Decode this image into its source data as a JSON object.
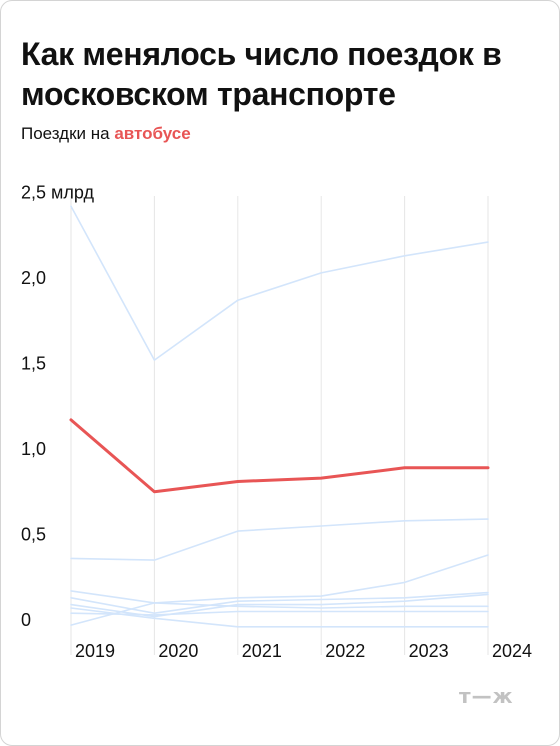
{
  "title": "Как менялось число поездок в московском транспорте",
  "subtitle": {
    "prefix": "Поездки на ",
    "highlight": "автобусе",
    "highlight_color": "#e85555"
  },
  "logo": "т—ж",
  "colors": {
    "highlight_line": "#e85555",
    "other_lines": "#d3e5fb",
    "grid": "#e6e6e6"
  },
  "chart_data": {
    "type": "line",
    "x": [
      "2019",
      "2020",
      "2021",
      "2022",
      "2023",
      "2024"
    ],
    "y_ticks": [
      "2,5 млрд",
      "2,0",
      "1,5",
      "1,0",
      "0,5",
      "0"
    ],
    "y_tick_values": [
      2.5,
      2.0,
      1.5,
      1.0,
      0.5,
      0
    ],
    "ylim": [
      0,
      2.5
    ],
    "unit": "млрд",
    "grid": "vertical",
    "series": [
      {
        "highlight": false,
        "values": [
          2.42,
          1.52,
          1.87,
          2.03,
          2.13,
          2.21
        ]
      },
      {
        "highlight": true,
        "values": [
          1.17,
          0.75,
          0.81,
          0.83,
          0.89,
          0.89
        ]
      },
      {
        "highlight": false,
        "values": [
          0.36,
          0.35,
          0.52,
          0.55,
          0.58,
          0.59
        ]
      },
      {
        "highlight": false,
        "values": [
          0.17,
          0.1,
          0.13,
          0.14,
          0.22,
          0.38
        ]
      },
      {
        "highlight": false,
        "values": [
          0.13,
          0.04,
          0.11,
          0.12,
          0.13,
          0.16
        ]
      },
      {
        "highlight": false,
        "values": [
          0.09,
          0.02,
          0.09,
          0.09,
          0.11,
          0.15
        ]
      },
      {
        "highlight": false,
        "values": [
          -0.03,
          0.1,
          0.08,
          0.07,
          0.08,
          0.08
        ]
      },
      {
        "highlight": false,
        "values": [
          0.04,
          0.03,
          0.05,
          0.05,
          0.05,
          0.05
        ]
      },
      {
        "highlight": false,
        "values": [
          0.07,
          0.01,
          -0.04,
          -0.04,
          -0.04,
          -0.04
        ]
      }
    ]
  }
}
